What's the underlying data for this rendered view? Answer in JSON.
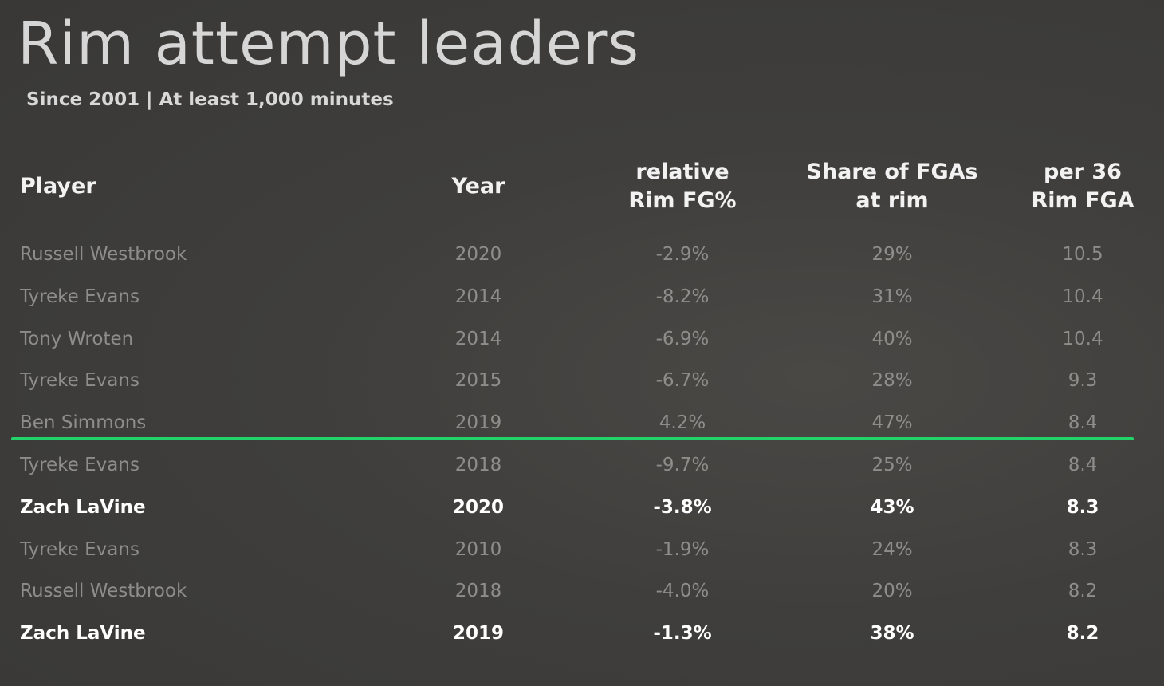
{
  "title": "Rim attempt leaders",
  "subtitle": "Since 2001 | At least 1,000 minutes",
  "colors": {
    "background": "#3f3e3c",
    "muted_text": "#8e8d8a",
    "highlight_text": "#ffffff",
    "cutoff_line": "#22d36a"
  },
  "chart_data": {
    "type": "table",
    "title": "Rim attempt leaders",
    "subtitle": "Since 2001 | At least 1,000 minutes",
    "columns": {
      "player": "Player",
      "year": "Year",
      "rel_line1": "relative",
      "rel_line2": "Rim FG%",
      "share_line1": "Share of FGAs",
      "share_line2": "at rim",
      "per_line1": "per 36",
      "per_line2": "Rim FGA"
    },
    "rows": [
      {
        "player": "Russell Westbrook",
        "year": "2020",
        "rel_fg": "-2.9%",
        "share": "29%",
        "per36": "10.5",
        "highlight": false
      },
      {
        "player": "Tyreke Evans",
        "year": "2014",
        "rel_fg": "-8.2%",
        "share": "31%",
        "per36": "10.4",
        "highlight": false
      },
      {
        "player": "Tony Wroten",
        "year": "2014",
        "rel_fg": "-6.9%",
        "share": "40%",
        "per36": "10.4",
        "highlight": false
      },
      {
        "player": "Tyreke Evans",
        "year": "2015",
        "rel_fg": "-6.7%",
        "share": "28%",
        "per36": "9.3",
        "highlight": false
      },
      {
        "player": "Ben Simmons",
        "year": "2019",
        "rel_fg": "4.2%",
        "share": "47%",
        "per36": "8.4",
        "highlight": false
      },
      {
        "player": "Tyreke Evans",
        "year": "2018",
        "rel_fg": "-9.7%",
        "share": "25%",
        "per36": "8.4",
        "highlight": false
      },
      {
        "player": "Zach LaVine",
        "year": "2020",
        "rel_fg": "-3.8%",
        "share": "43%",
        "per36": "8.3",
        "highlight": true
      },
      {
        "player": "Tyreke Evans",
        "year": "2010",
        "rel_fg": "-1.9%",
        "share": "24%",
        "per36": "8.3",
        "highlight": false
      },
      {
        "player": "Russell Westbrook",
        "year": "2018",
        "rel_fg": "-4.0%",
        "share": "20%",
        "per36": "8.2",
        "highlight": false
      },
      {
        "player": "Zach LaVine",
        "year": "2019",
        "rel_fg": "-1.3%",
        "share": "38%",
        "per36": "8.2",
        "highlight": true
      }
    ],
    "cutoff_after_row": 5
  }
}
